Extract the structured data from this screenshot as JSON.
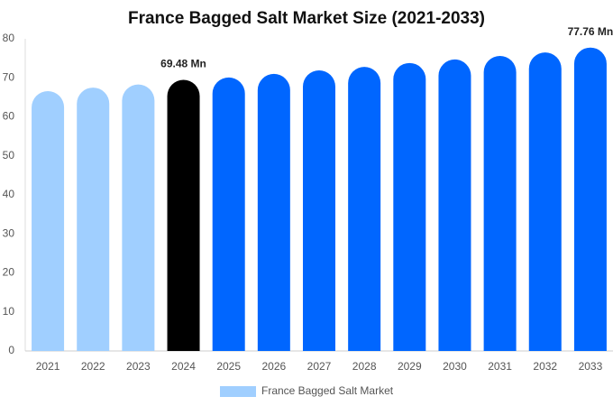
{
  "chart_data": {
    "type": "bar",
    "title": "France Bagged Salt Market Size (2021-2033)",
    "categories": [
      "2021",
      "2022",
      "2023",
      "2024",
      "2025",
      "2026",
      "2027",
      "2028",
      "2029",
      "2030",
      "2031",
      "2032",
      "2033"
    ],
    "series": [
      {
        "name": "France Bagged Salt Market",
        "color": "#a0cfff",
        "values": [
          66.6,
          67.5,
          68.3,
          69.48,
          70.1,
          71.0,
          71.9,
          72.8,
          73.8,
          74.7,
          75.6,
          76.5,
          77.76
        ],
        "bar_colors": [
          "#a0cfff",
          "#a0cfff",
          "#a0cfff",
          "#000000",
          "#0066ff",
          "#0066ff",
          "#0066ff",
          "#0066ff",
          "#0066ff",
          "#0066ff",
          "#0066ff",
          "#0066ff",
          "#0066ff"
        ],
        "value_labels": [
          null,
          null,
          null,
          "69.48 Mn",
          null,
          null,
          null,
          null,
          null,
          null,
          null,
          null,
          "77.76 Mn"
        ]
      }
    ],
    "ylim": [
      0,
      80
    ],
    "yticks": [
      0,
      10,
      20,
      30,
      40,
      50,
      60,
      70,
      80
    ],
    "grid": false
  }
}
